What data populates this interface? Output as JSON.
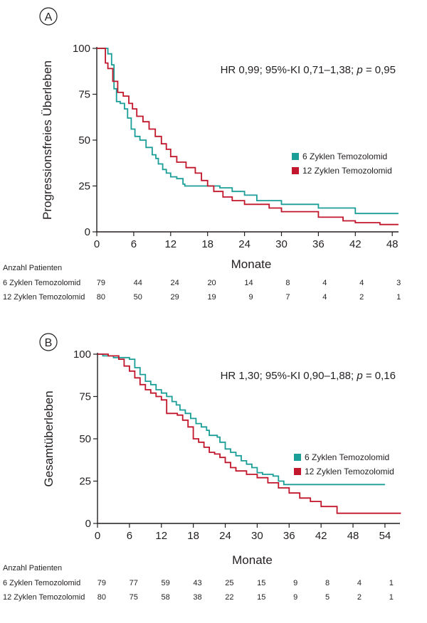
{
  "colors": {
    "six": "#1a9e97",
    "twelve": "#c1162b",
    "axis": "#231f20"
  },
  "chart_data": [
    {
      "panel": "A",
      "type": "line",
      "step": true,
      "ylabel": "Progressionsfreies Überleben",
      "xlabel": "Monate",
      "xlim": [
        0,
        49
      ],
      "ylim": [
        0,
        100
      ],
      "xticks": [
        0,
        6,
        12,
        18,
        24,
        30,
        36,
        42,
        48
      ],
      "yticks": [
        0,
        25,
        50,
        75,
        100
      ],
      "annotation": "HR 0,99; 95%-KI 0,71–1,38; p = 0,95",
      "legend": "right-middle",
      "series": [
        {
          "name": "6 Zyklen Temozolomid",
          "color": "#1a9e97",
          "x": [
            0,
            1.2,
            1.8,
            2.4,
            2.8,
            3.2,
            3.8,
            4.5,
            5,
            5.6,
            6.2,
            7,
            8,
            9,
            9.6,
            10,
            10.7,
            11.3,
            12,
            13,
            14,
            14.3,
            18,
            20,
            22,
            24,
            26,
            30,
            36,
            42,
            49
          ],
          "y": [
            100,
            100,
            97,
            91,
            78,
            71,
            70,
            67,
            62,
            56,
            52,
            50,
            46,
            42,
            40,
            37,
            34,
            32,
            30,
            29,
            26,
            25,
            25,
            24,
            22,
            20,
            17,
            15,
            13,
            10,
            10
          ]
        },
        {
          "name": "12 Zyklen Temozolomid",
          "color": "#c1162b",
          "x": [
            0,
            1.4,
            1.8,
            2.6,
            3.4,
            4.3,
            5.2,
            5.8,
            6.5,
            7.5,
            8.5,
            9.5,
            10.5,
            11.3,
            12,
            13,
            14.5,
            16,
            17,
            18,
            19,
            20.5,
            22,
            24,
            28,
            30,
            36,
            40,
            42,
            46,
            49
          ],
          "y": [
            100,
            92,
            89,
            82,
            76,
            74,
            70,
            67,
            63,
            60,
            56,
            52,
            48,
            45,
            41,
            38,
            35,
            32,
            28,
            25,
            22,
            19,
            17,
            15,
            13,
            11,
            8,
            6,
            5,
            4,
            4
          ]
        }
      ],
      "risk_table": {
        "title": "Anzahl Patienten",
        "x": [
          0,
          6,
          12,
          18,
          24,
          30,
          36,
          42,
          48
        ],
        "rows": [
          {
            "label": "6 Zyklen Temozolomid",
            "values": [
              "79",
              "44",
              "24",
              "20",
              "14",
              "8",
              "4",
              "4",
              "3"
            ]
          },
          {
            "label": "12 Zyklen Temozolomid",
            "values": [
              "80",
              "50",
              "29",
              "19",
              "9",
              "7",
              "4",
              "2",
              "1"
            ]
          }
        ]
      }
    },
    {
      "panel": "B",
      "type": "line",
      "step": true,
      "ylabel": "Gesamtüberleben",
      "xlabel": "Monate",
      "xlim": [
        0,
        57
      ],
      "ylim": [
        0,
        100
      ],
      "xticks": [
        0,
        6,
        12,
        18,
        24,
        30,
        36,
        42,
        48,
        54
      ],
      "yticks": [
        0,
        25,
        50,
        75,
        100
      ],
      "annotation": "HR 1,30; 95%-KI 0,90–1,88; p = 0,16",
      "legend": "right-middle",
      "series": [
        {
          "name": "6 Zyklen Temozolomid",
          "color": "#1a9e97",
          "x": [
            0,
            1,
            3,
            6,
            7,
            8,
            9,
            10,
            11,
            12,
            13,
            14,
            14.8,
            15.5,
            16.5,
            17.5,
            18.5,
            19.5,
            20.5,
            21,
            22.5,
            23,
            24,
            25,
            26,
            27,
            28,
            29,
            30,
            31,
            33,
            34,
            35,
            54
          ],
          "y": [
            100,
            99,
            98,
            97,
            92,
            88,
            84,
            82,
            79,
            77,
            75,
            72,
            70,
            67,
            65,
            62,
            59,
            57,
            55,
            52,
            51,
            48,
            44,
            42,
            40,
            37,
            35,
            33,
            30,
            29,
            28,
            25,
            23,
            23
          ]
        },
        {
          "name": "12 Zyklen Temozolomid",
          "color": "#c1162b",
          "x": [
            0,
            2,
            4,
            5,
            6,
            7,
            8,
            9,
            10,
            11,
            12,
            13,
            15,
            16,
            17,
            18,
            19,
            20,
            21,
            22,
            23,
            24,
            25,
            26,
            28,
            30,
            32,
            34,
            36,
            38,
            40,
            42,
            45,
            57
          ],
          "y": [
            100,
            99,
            97,
            93,
            90,
            86,
            82,
            79,
            77,
            75,
            73,
            65,
            64,
            61,
            57,
            50,
            48,
            45,
            42,
            41,
            39,
            36,
            33,
            31,
            29,
            27,
            24,
            21,
            18,
            15,
            13,
            10,
            6,
            6
          ]
        }
      ],
      "risk_table": {
        "title": "Anzahl Patienten",
        "x": [
          0,
          6,
          12,
          18,
          24,
          30,
          36,
          42,
          48,
          54
        ],
        "rows": [
          {
            "label": "6 Zyklen Temozolomid",
            "values": [
              "79",
              "77",
              "59",
              "43",
              "25",
              "15",
              "9",
              "8",
              "4",
              "1"
            ]
          },
          {
            "label": "12 Zyklen Temozolomid",
            "values": [
              "80",
              "75",
              "58",
              "38",
              "22",
              "15",
              "9",
              "5",
              "2",
              "1"
            ]
          }
        ]
      }
    }
  ]
}
